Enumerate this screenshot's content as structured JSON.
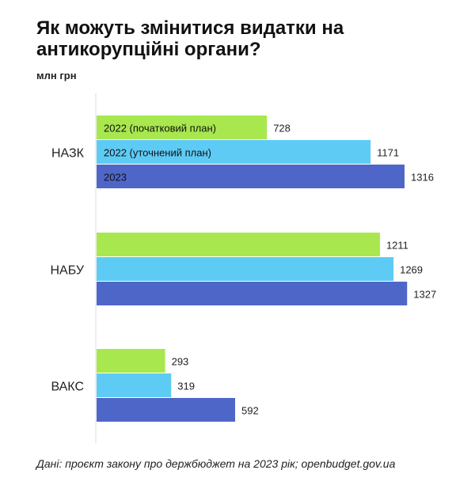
{
  "chart_data": {
    "type": "bar",
    "orientation": "horizontal",
    "title": "Як можуть змінитися видатки на антикорупційні органи?",
    "unit": "млн грн",
    "source": "Дані: проєкт закону про держбюджет на 2023 рік; openbudget.gov.ua",
    "categories": [
      "НАЗК",
      "НАБУ",
      "ВАКС"
    ],
    "series": [
      {
        "name": "2022 (початковий план)",
        "color": "#a8e84e",
        "values": [
          728,
          1211,
          293
        ]
      },
      {
        "name": "2022 (уточнений план)",
        "color": "#5ecbf5",
        "values": [
          1171,
          1269,
          319
        ]
      },
      {
        "name": "2023",
        "color": "#4f66c9",
        "values": [
          1316,
          1327,
          592
        ]
      }
    ],
    "xlim": [
      0,
      1327
    ],
    "grid": false,
    "legend": "inside first group bars"
  }
}
